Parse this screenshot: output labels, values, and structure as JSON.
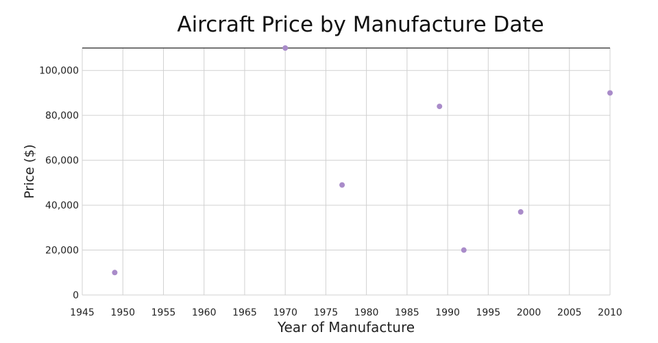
{
  "chart_data": {
    "type": "scatter",
    "title": "Aircraft Price by Manufacture Date",
    "xlabel": "Year of Manufacture",
    "ylabel": "Price ($)",
    "xlim": [
      1945,
      2010
    ],
    "ylim": [
      0,
      110000
    ],
    "xticks": [
      1945,
      1950,
      1955,
      1960,
      1965,
      1970,
      1975,
      1980,
      1985,
      1990,
      1995,
      2000,
      2005,
      2010
    ],
    "yticks": [
      0,
      20000,
      40000,
      60000,
      80000,
      100000
    ],
    "ytick_labels": [
      "0",
      "20,000",
      "40,000",
      "60,000",
      "80,000",
      "100,000"
    ],
    "grid": true,
    "marker_color": "#a98bc9",
    "series": [
      {
        "name": "Aircraft",
        "points": [
          {
            "x": 1949,
            "y": 10000
          },
          {
            "x": 1970,
            "y": 110000
          },
          {
            "x": 1977,
            "y": 49000
          },
          {
            "x": 1989,
            "y": 84000
          },
          {
            "x": 1992,
            "y": 20000
          },
          {
            "x": 1999,
            "y": 37000
          },
          {
            "x": 2010,
            "y": 90000
          }
        ]
      }
    ]
  }
}
